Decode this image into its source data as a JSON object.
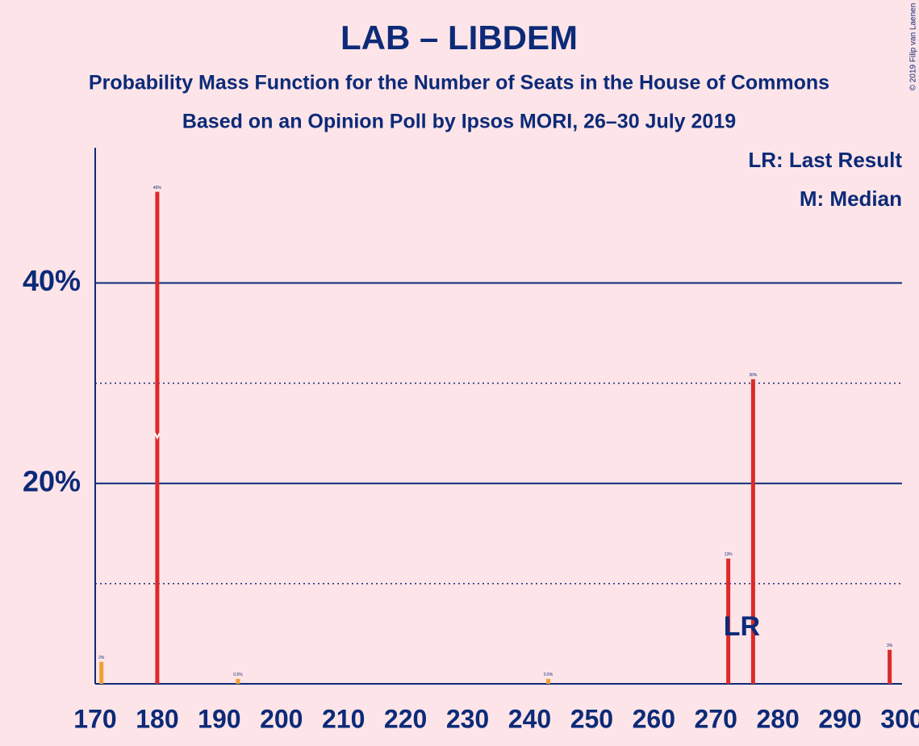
{
  "chart_data": {
    "type": "bar",
    "title": "LAB – LIBDEM",
    "subtitle": "Probability Mass Function for the Number of Seats in the House of Commons",
    "subtitle2": "Based on an Opinion Poll by Ipsos MORI, 26–30 July 2019",
    "copyright": "© 2019 Filip van Laenen",
    "legend": [
      "LR: Last Result",
      "M: Median"
    ],
    "last_result_label": "LR",
    "last_result": 276,
    "median": 180,
    "x": [
      171,
      180,
      193,
      243,
      272,
      276,
      298
    ],
    "values": [
      2.2,
      49.1,
      0.5,
      0.5,
      12.5,
      30.4,
      3.4
    ],
    "value_labels": [
      "2%",
      "49%",
      "0.5%",
      "0.5%",
      "13%",
      "30%",
      "3%"
    ],
    "colors": [
      "#f0a030",
      "#dd2a2a",
      "#f0a030",
      "#f0a030",
      "#dd2a2a",
      "#dd2a2a",
      "#dd2a2a"
    ],
    "xlim": [
      170,
      300
    ],
    "xticks": [
      170,
      180,
      190,
      200,
      210,
      220,
      230,
      240,
      250,
      260,
      270,
      280,
      290,
      300
    ],
    "ylim": [
      0,
      53.5
    ],
    "yticks": [
      {
        "value": 20,
        "label": "20%"
      },
      {
        "value": 40,
        "label": "40%"
      }
    ],
    "minor_yticks": [
      10,
      30
    ]
  }
}
